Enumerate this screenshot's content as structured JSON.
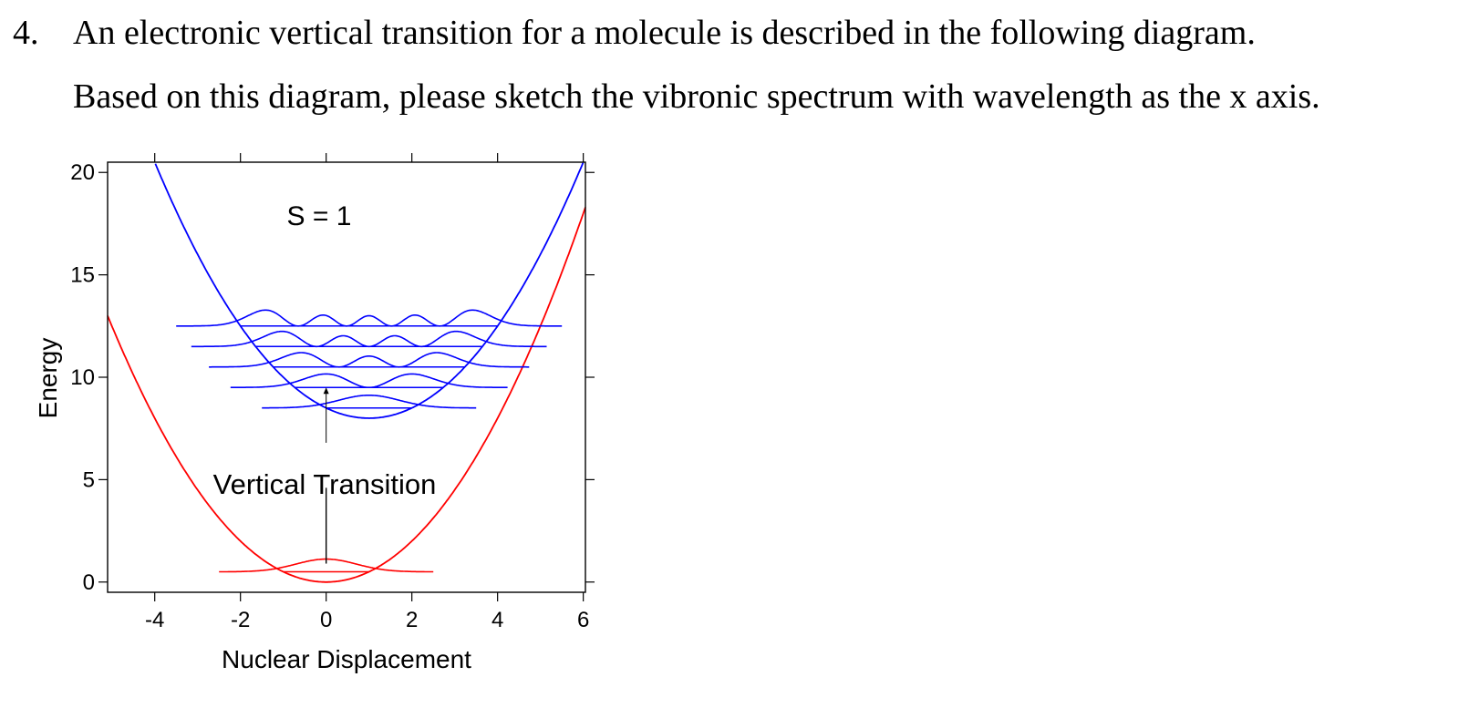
{
  "question": {
    "number": "4.",
    "line1": "An electronic vertical transition for a molecule is described in the following diagram.",
    "line2": "Based on this diagram, please sketch the vibronic spectrum with wavelength as the x axis."
  },
  "figure": {
    "xlabel": "Nuclear Displacement",
    "ylabel": "Energy",
    "x_ticks": [
      "-4",
      "-2",
      "0",
      "2",
      "4",
      "6"
    ],
    "y_ticks": [
      "0",
      "5",
      "10",
      "15",
      "20"
    ],
    "annotation_s": "S = 1",
    "annotation_transition": "Vertical Transition",
    "xlim": [
      -5.1,
      6.05
    ],
    "ylim": [
      -0.5,
      20.5
    ],
    "ground_state": {
      "color": "#ff0000",
      "center": 0,
      "offset": 0,
      "k": 0.5,
      "vib_levels": [
        0.5
      ],
      "wavefunction_half_width": 2.5
    },
    "excited_state": {
      "color": "#0000ff",
      "center": 1,
      "offset": 8,
      "k": 0.5,
      "vib_levels": [
        8.5,
        9.5,
        10.5,
        11.5,
        12.5
      ]
    }
  }
}
